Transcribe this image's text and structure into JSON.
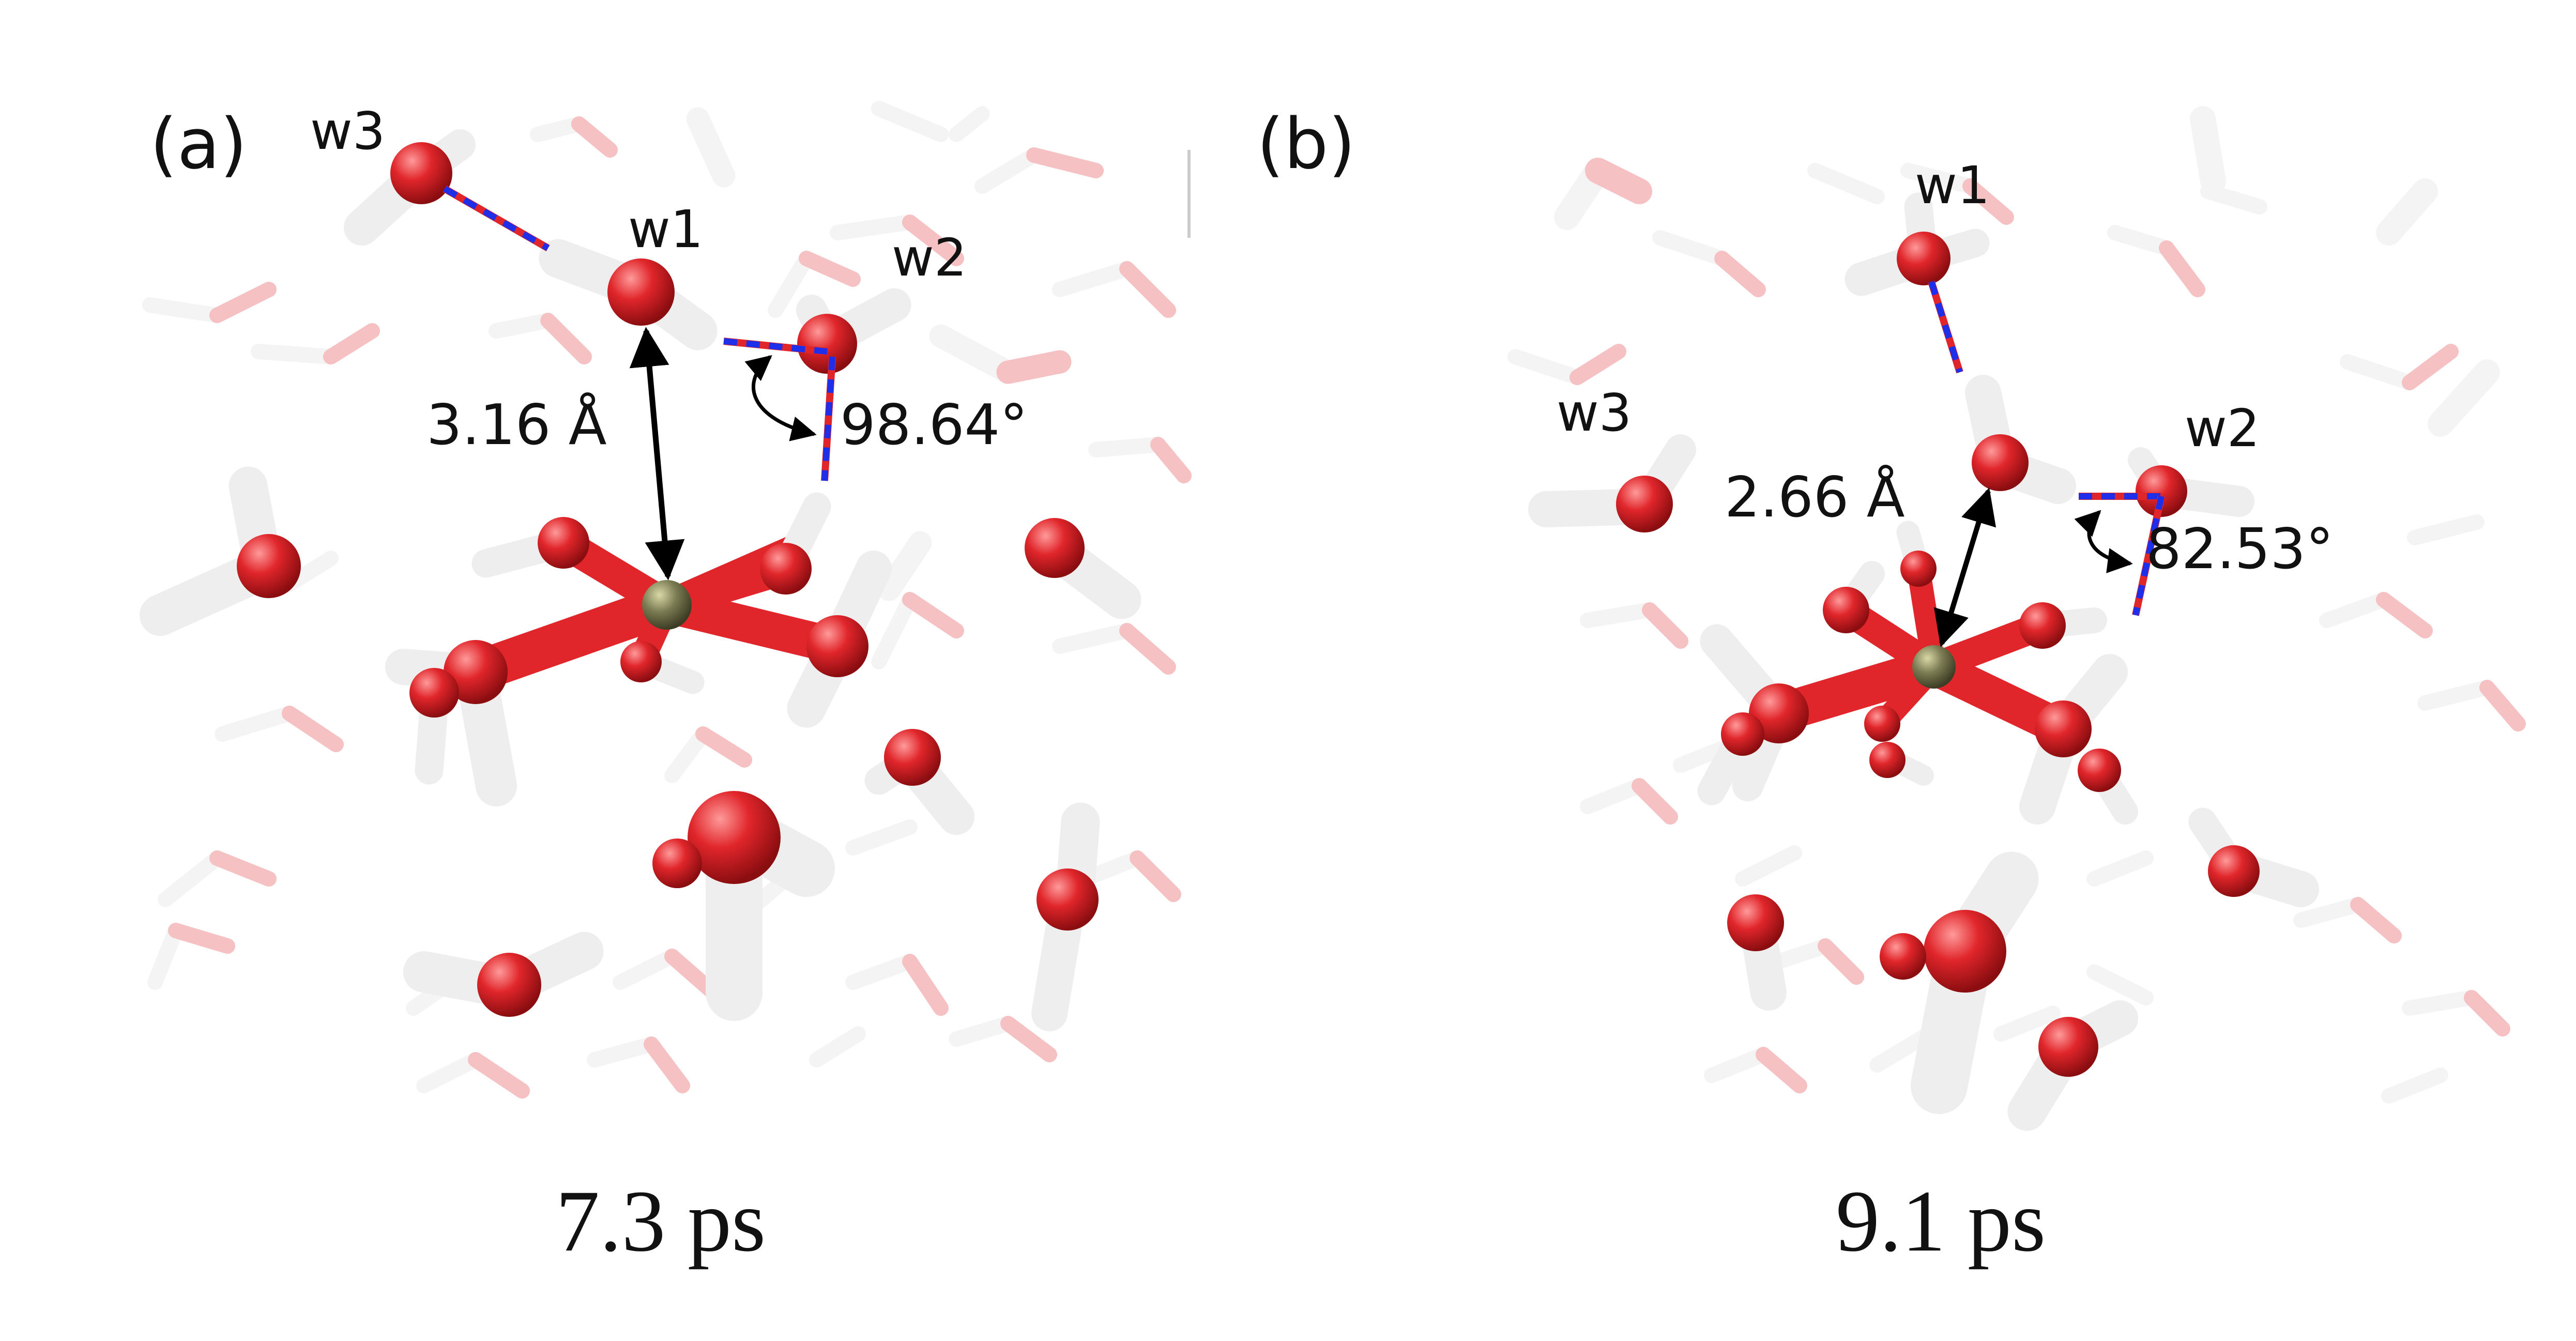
{
  "panels": [
    {
      "label": "(a)",
      "water_labels": {
        "w1": "w1",
        "w2": "w2",
        "w3": "w3"
      },
      "distance": "3.16 Å",
      "angle": "98.64°",
      "time": "7.3 ps"
    },
    {
      "label": "(b)",
      "water_labels": {
        "w1": "w1",
        "w2": "w2",
        "w3": "w3"
      },
      "distance": "2.66 Å",
      "angle": "82.53°",
      "time": "9.1 ps"
    }
  ],
  "colors": {
    "oxygen": "#e0262b",
    "hydrogen": "#f0f0f0",
    "metal": "#7a7a52",
    "hbond": "#1f2ee8",
    "arrow": "#000000"
  }
}
